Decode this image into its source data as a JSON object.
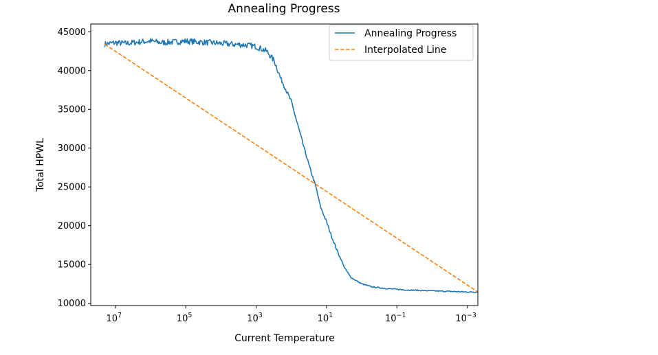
{
  "chart_data": {
    "type": "line",
    "title": "Annealing Progress",
    "xlabel": "Current Temperature",
    "ylabel": "Total HPWL",
    "xscale": "log",
    "xaxis_direction": "decreasing",
    "xlim": [
      50000000,
      0.0005
    ],
    "ylim": [
      9700,
      46000
    ],
    "grid": false,
    "legend_position": "top-right",
    "x_ticks": [
      {
        "value": 10000000,
        "base": "10",
        "exp": "7"
      },
      {
        "value": 100000,
        "base": "10",
        "exp": "5"
      },
      {
        "value": 1000,
        "base": "10",
        "exp": "3"
      },
      {
        "value": 10,
        "base": "10",
        "exp": "1"
      },
      {
        "value": 0.1,
        "base": "10",
        "exp": "−1"
      },
      {
        "value": 0.001,
        "base": "10",
        "exp": "−3"
      }
    ],
    "y_ticks": [
      {
        "value": 10000,
        "label": "10000"
      },
      {
        "value": 15000,
        "label": "15000"
      },
      {
        "value": 20000,
        "label": "20000"
      },
      {
        "value": 25000,
        "label": "25000"
      },
      {
        "value": 30000,
        "label": "30000"
      },
      {
        "value": 35000,
        "label": "35000"
      },
      {
        "value": 40000,
        "label": "40000"
      },
      {
        "value": 45000,
        "label": "45000"
      }
    ],
    "series": [
      {
        "name": "Annealing Progress",
        "color": "#1f77b4",
        "style": "solid",
        "x": [
          20000000,
          10000000,
          5000000,
          2000000,
          1000000,
          500000,
          200000,
          100000,
          50000,
          20000,
          10000,
          5000,
          2000,
          1000,
          500,
          300,
          200,
          100,
          50,
          30,
          20,
          15,
          10,
          7,
          5,
          3,
          2,
          1,
          0.5,
          0.2,
          0.1,
          0.05,
          0.02,
          0.01,
          0.005,
          0.002,
          0.001,
          0.0005
        ],
        "y": [
          43400,
          43600,
          43500,
          43700,
          43800,
          43600,
          43700,
          43800,
          43700,
          43600,
          43500,
          43400,
          43300,
          43100,
          42500,
          41200,
          39000,
          36000,
          31000,
          27500,
          25000,
          22500,
          20500,
          18500,
          16800,
          14500,
          13300,
          12500,
          12100,
          11900,
          11800,
          11700,
          11650,
          11600,
          11550,
          11500,
          11450,
          11450
        ]
      },
      {
        "name": "Interpolated Line",
        "color": "#ff7f0e",
        "style": "dashed",
        "x": [
          20000000,
          0.0005
        ],
        "y": [
          43400,
          11450
        ]
      }
    ]
  }
}
